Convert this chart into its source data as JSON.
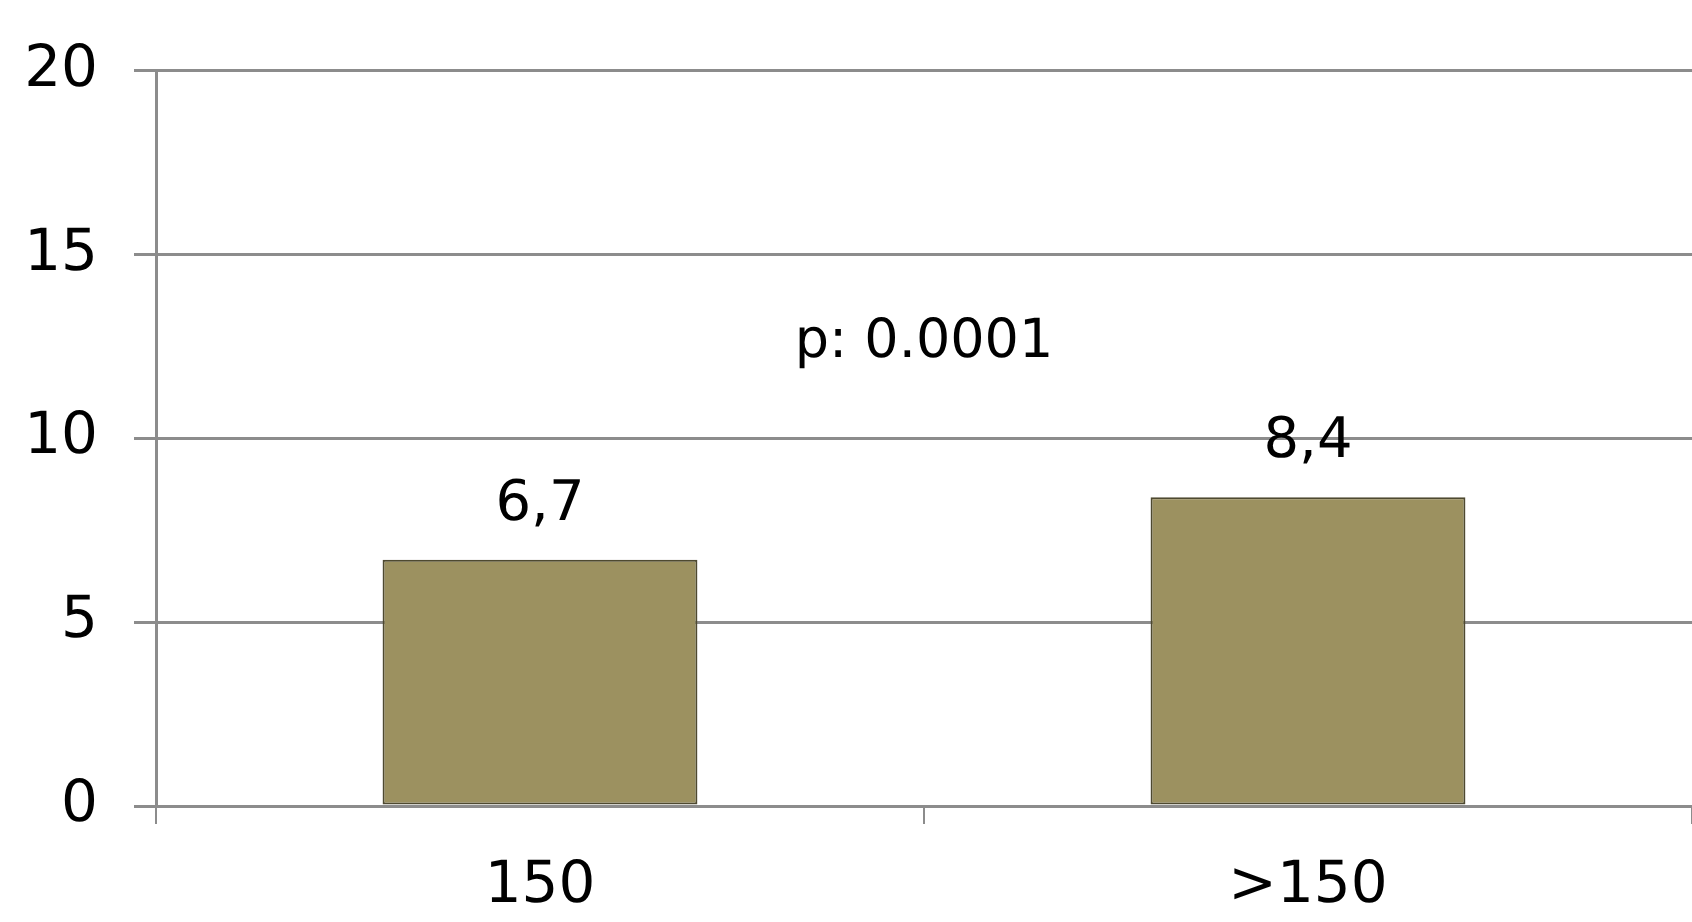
{
  "chart_data": {
    "type": "bar",
    "categories": [
      "150",
      ">150"
    ],
    "values": [
      6.7,
      8.4
    ],
    "color": "#9c9160",
    "value_labels": [
      "6,7",
      "8,4"
    ],
    "ylim": [
      0,
      20
    ],
    "yticks": [
      0,
      5,
      10,
      15,
      20
    ],
    "grid": "y",
    "annotations": [
      "p: 0.0001"
    ]
  }
}
